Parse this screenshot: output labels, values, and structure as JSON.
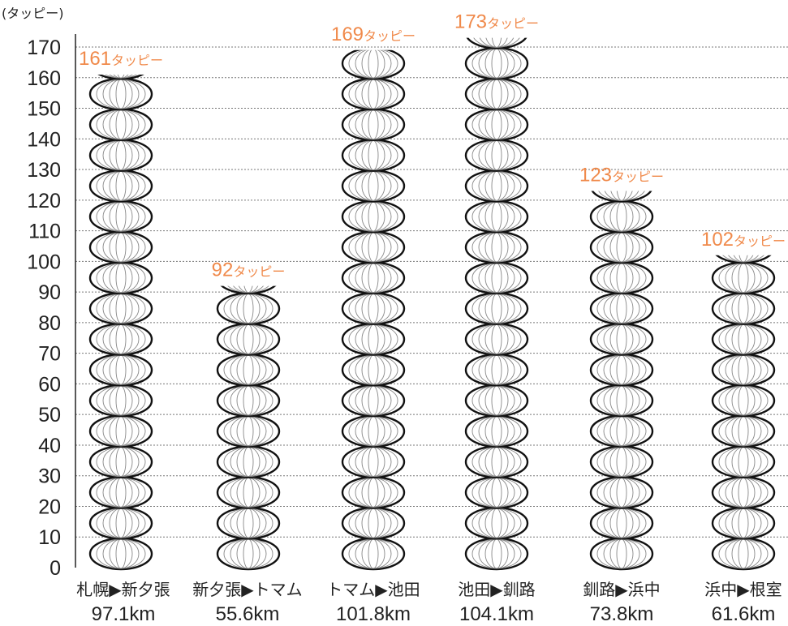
{
  "chart_data": {
    "type": "bar",
    "unit_label": "(タッピー)",
    "value_unit": "タッピー",
    "ylim": [
      0,
      170
    ],
    "yticks": [
      0,
      10,
      20,
      30,
      40,
      50,
      60,
      70,
      80,
      90,
      100,
      110,
      120,
      130,
      140,
      150,
      160,
      170
    ],
    "grid": true,
    "categories": [
      {
        "name": "札幌▶新夕張",
        "distance": "97.1km"
      },
      {
        "name": "新夕張▶トマム",
        "distance": "55.6km"
      },
      {
        "name": "トマム▶池田",
        "distance": "101.8km"
      },
      {
        "name": "池田▶釧路",
        "distance": "104.1km"
      },
      {
        "name": "釧路▶浜中",
        "distance": "73.8km"
      },
      {
        "name": "浜中▶根室",
        "distance": "61.6km"
      }
    ],
    "values": [
      161,
      92,
      169,
      173,
      123,
      102
    ],
    "colors": {
      "value_label": "#f08a4b",
      "outline": "#111111",
      "rib": "#888888"
    }
  }
}
